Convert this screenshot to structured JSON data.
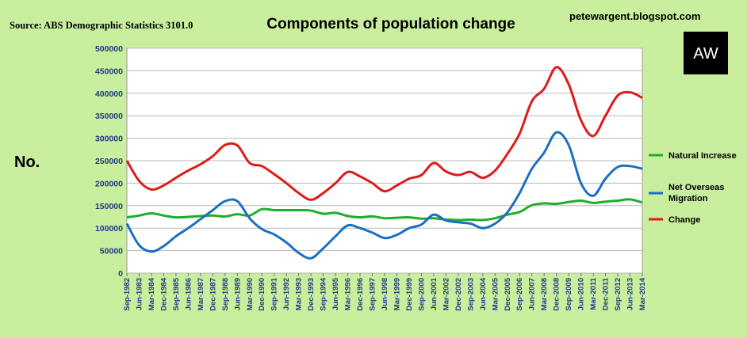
{
  "header": {
    "source": "Source: ABS Demographic Statistics 3101.0",
    "blog": "petewargent.blogspot.com",
    "logo": "AW"
  },
  "colors": {
    "background": "#c8ee9e",
    "plot_background": "#ffffff",
    "natural_increase": "#1fad2e",
    "net_overseas_migration": "#1c6fc0",
    "change": "#e01a1a",
    "axis_text": "#1f3a80"
  },
  "chart_data": {
    "type": "line",
    "title": "Components of population change",
    "ylabel": "No.",
    "xlabel": "",
    "ylim": [
      0,
      500000
    ],
    "yticks": [
      0,
      50000,
      100000,
      150000,
      200000,
      250000,
      300000,
      350000,
      400000,
      450000,
      500000
    ],
    "grid": true,
    "legend_position": "right",
    "x_tick_labels": [
      "Sep-1982",
      "Jun-1983",
      "Mar-1984",
      "Dec-1984",
      "Sep-1985",
      "Jun-1986",
      "Mar-1987",
      "Dec-1987",
      "Sep-1988",
      "Jun-1989",
      "Mar-1990",
      "Dec-1990",
      "Sep-1991",
      "Jun-1992",
      "Mar-1993",
      "Dec-1993",
      "Sep-1994",
      "Jun-1995",
      "Mar-1996",
      "Dec-1996",
      "Sep-1997",
      "Jun-1998",
      "Mar-1999",
      "Dec-1999",
      "Sep-2000",
      "Jun-2001",
      "Mar-2002",
      "Dec-2002",
      "Sep-2003",
      "Jun-2004",
      "Mar-2005",
      "Dec-2005",
      "Sep-2006",
      "Jun-2007",
      "Mar-2008",
      "Dec-2008",
      "Sep-2009",
      "Jun-2010",
      "Mar-2011",
      "Dec-2011",
      "Sep-2012",
      "Jun-2013",
      "Mar-2014"
    ],
    "series": [
      {
        "name": "Natural Increase",
        "color": "#1fad2e",
        "points": [
          [
            "Sep-1982",
            124000
          ],
          [
            "Jun-1983",
            128000
          ],
          [
            "Mar-1984",
            133000
          ],
          [
            "Dec-1984",
            128000
          ],
          [
            "Sep-1985",
            124000
          ],
          [
            "Jun-1986",
            125000
          ],
          [
            "Mar-1987",
            127000
          ],
          [
            "Dec-1987",
            128000
          ],
          [
            "Sep-1988",
            126000
          ],
          [
            "Jun-1989",
            131000
          ],
          [
            "Mar-1990",
            128000
          ],
          [
            "Dec-1990",
            142000
          ],
          [
            "Sep-1991",
            140000
          ],
          [
            "Jun-1992",
            140000
          ],
          [
            "Mar-1993",
            140000
          ],
          [
            "Dec-1993",
            139000
          ],
          [
            "Sep-1994",
            132000
          ],
          [
            "Jun-1995",
            134000
          ],
          [
            "Mar-1996",
            127000
          ],
          [
            "Dec-1996",
            124000
          ],
          [
            "Sep-1997",
            126000
          ],
          [
            "Jun-1998",
            122000
          ],
          [
            "Mar-1999",
            123000
          ],
          [
            "Dec-1999",
            124000
          ],
          [
            "Sep-2000",
            121000
          ],
          [
            "Jun-2001",
            122000
          ],
          [
            "Mar-2002",
            119000
          ],
          [
            "Dec-2002",
            118000
          ],
          [
            "Sep-2003",
            119000
          ],
          [
            "Jun-2004",
            118000
          ],
          [
            "Mar-2005",
            122000
          ],
          [
            "Dec-2005",
            130000
          ],
          [
            "Sep-2006",
            136000
          ],
          [
            "Jun-2007",
            151000
          ],
          [
            "Mar-2008",
            155000
          ],
          [
            "Dec-2008",
            154000
          ],
          [
            "Sep-2009",
            158000
          ],
          [
            "Jun-2010",
            161000
          ],
          [
            "Mar-2011",
            156000
          ],
          [
            "Dec-2011",
            159000
          ],
          [
            "Sep-2012",
            161000
          ],
          [
            "Jun-2013",
            164000
          ],
          [
            "Mar-2014",
            157000
          ]
        ]
      },
      {
        "name": "Net Overseas Migration",
        "color": "#1c6fc0",
        "points": [
          [
            "Sep-1982",
            110000
          ],
          [
            "Jun-1983",
            62000
          ],
          [
            "Mar-1984",
            48000
          ],
          [
            "Dec-1984",
            60000
          ],
          [
            "Sep-1985",
            82000
          ],
          [
            "Jun-1986",
            100000
          ],
          [
            "Mar-1987",
            120000
          ],
          [
            "Dec-1987",
            140000
          ],
          [
            "Sep-1988",
            160000
          ],
          [
            "Jun-1989",
            160000
          ],
          [
            "Mar-1990",
            122000
          ],
          [
            "Dec-1990",
            98000
          ],
          [
            "Sep-1991",
            86000
          ],
          [
            "Jun-1992",
            68000
          ],
          [
            "Mar-1993",
            45000
          ],
          [
            "Dec-1993",
            33000
          ],
          [
            "Sep-1994",
            55000
          ],
          [
            "Jun-1995",
            82000
          ],
          [
            "Mar-1996",
            106000
          ],
          [
            "Dec-1996",
            100000
          ],
          [
            "Sep-1997",
            90000
          ],
          [
            "Jun-1998",
            78000
          ],
          [
            "Mar-1999",
            85000
          ],
          [
            "Dec-1999",
            100000
          ],
          [
            "Sep-2000",
            108000
          ],
          [
            "Jun-2001",
            130000
          ],
          [
            "Mar-2002",
            117000
          ],
          [
            "Dec-2002",
            113000
          ],
          [
            "Sep-2003",
            110000
          ],
          [
            "Jun-2004",
            100000
          ],
          [
            "Mar-2005",
            110000
          ],
          [
            "Dec-2005",
            135000
          ],
          [
            "Sep-2006",
            178000
          ],
          [
            "Jun-2007",
            232000
          ],
          [
            "Mar-2008",
            268000
          ],
          [
            "Dec-2008",
            313000
          ],
          [
            "Sep-2009",
            285000
          ],
          [
            "Jun-2010",
            200000
          ],
          [
            "Mar-2011",
            172000
          ],
          [
            "Dec-2011",
            210000
          ],
          [
            "Sep-2012",
            236000
          ],
          [
            "Jun-2013",
            238000
          ],
          [
            "Mar-2014",
            232000
          ]
        ]
      },
      {
        "name": "Change",
        "color": "#e01a1a",
        "points": [
          [
            "Sep-1982",
            250000
          ],
          [
            "Jun-1983",
            205000
          ],
          [
            "Mar-1984",
            186000
          ],
          [
            "Dec-1984",
            195000
          ],
          [
            "Sep-1985",
            212000
          ],
          [
            "Jun-1986",
            228000
          ],
          [
            "Mar-1987",
            242000
          ],
          [
            "Dec-1987",
            260000
          ],
          [
            "Sep-1988",
            285000
          ],
          [
            "Jun-1989",
            284000
          ],
          [
            "Mar-1990",
            245000
          ],
          [
            "Dec-1990",
            238000
          ],
          [
            "Sep-1991",
            220000
          ],
          [
            "Jun-1992",
            200000
          ],
          [
            "Mar-1993",
            178000
          ],
          [
            "Dec-1993",
            163000
          ],
          [
            "Sep-1994",
            178000
          ],
          [
            "Jun-1995",
            200000
          ],
          [
            "Mar-1996",
            225000
          ],
          [
            "Dec-1996",
            215000
          ],
          [
            "Sep-1997",
            200000
          ],
          [
            "Jun-1998",
            182000
          ],
          [
            "Mar-1999",
            195000
          ],
          [
            "Dec-1999",
            210000
          ],
          [
            "Sep-2000",
            218000
          ],
          [
            "Jun-2001",
            245000
          ],
          [
            "Mar-2002",
            226000
          ],
          [
            "Dec-2002",
            218000
          ],
          [
            "Sep-2003",
            225000
          ],
          [
            "Jun-2004",
            212000
          ],
          [
            "Mar-2005",
            228000
          ],
          [
            "Dec-2005",
            265000
          ],
          [
            "Sep-2006",
            310000
          ],
          [
            "Jun-2007",
            382000
          ],
          [
            "Mar-2008",
            410000
          ],
          [
            "Dec-2008",
            458000
          ],
          [
            "Sep-2009",
            420000
          ],
          [
            "Jun-2010",
            340000
          ],
          [
            "Mar-2011",
            305000
          ],
          [
            "Dec-2011",
            350000
          ],
          [
            "Sep-2012",
            395000
          ],
          [
            "Jun-2013",
            402000
          ],
          [
            "Mar-2014",
            390000
          ]
        ]
      }
    ]
  }
}
